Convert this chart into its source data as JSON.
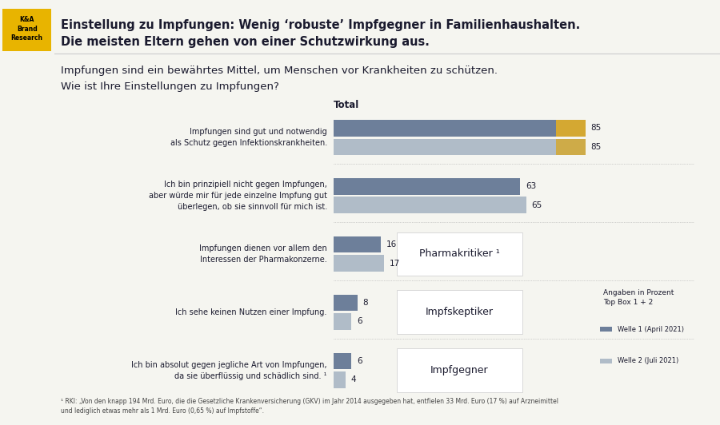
{
  "title_line1": "Einstellung zu Impfungen: Wenig ‘robuste’ Impfgegner in Familienhaushalten.",
  "title_line2": "Die meisten Eltern gehen von einer Schutzwirkung aus.",
  "subtitle_line1": "Impfungen sind ein bewährtes Mittel, um Menschen vor Krankheiten zu schützen.",
  "subtitle_line2": "Wie ist Ihre Einstellungen zu Impfungen?",
  "total_label": "Total",
  "categories": [
    "Impfungen sind gut und notwendig\nals Schutz gegen Infektionskrankheiten.",
    "Ich bin prinzipiell nicht gegen Impfungen,\naber würde mir für jede einzelne Impfung gut\nüberlegen, ob sie sinnvoll für mich ist.",
    "Impfungen dienen vor allem den\nInteressen der Pharmakonzerne.",
    "Ich sehe keinen Nutzen einer Impfung.",
    "Ich bin absolut gegen jegliche Art von Impfungen,\nda sie überflüssig und schädlich sind. ¹"
  ],
  "welle1_values": [
    85,
    63,
    16,
    8,
    6
  ],
  "welle2_values": [
    85,
    65,
    17,
    6,
    4
  ],
  "welle1_color": "#6d7f9a",
  "welle2_color": "#b0bcc8",
  "highlight_color": "#d4a832",
  "group_labels": [
    "Pharmakritiker ¹",
    "Impfskeptiker",
    "Impfgegner"
  ],
  "group_rows": [
    2,
    3,
    4
  ],
  "legend_title": "Angaben in Prozent\nTop Box 1 + 2",
  "legend_welle1": "Welle 1 (April 2021)",
  "legend_welle2": "Welle 2 (Juli 2021)",
  "footnote": "¹ RKI: „Von den knapp 194 Mrd. Euro, die die Gesetzliche Krankenversicherung (GKV) im Jahr 2014 ausgegeben hat, entfielen 33 Mrd. Euro (17 %) auf Arzneimittel\nund lediglich etwas mehr als 1 Mrd. Euro (0,65 %) auf Impfstoffe“.",
  "logo_text": "K&A\nBrand\nResearch",
  "logo_bg": "#e8b400",
  "background_color": "#f5f5f0"
}
